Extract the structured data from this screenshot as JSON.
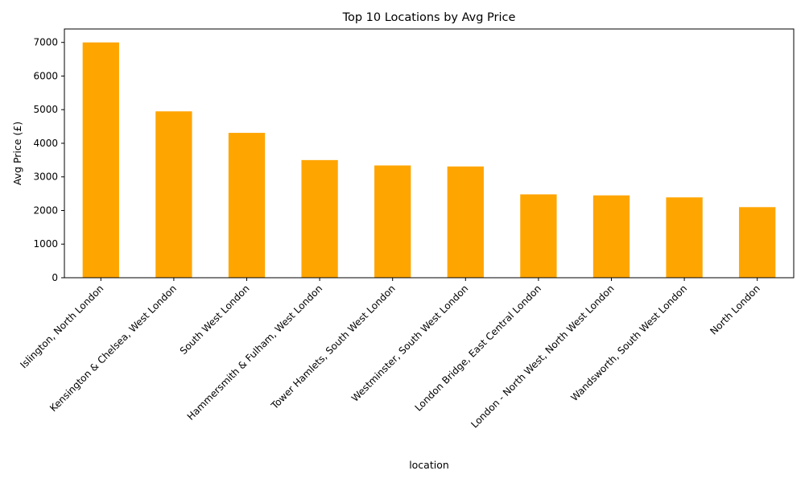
{
  "chart_data": {
    "type": "bar",
    "title": "Top 10 Locations by Avg Price",
    "xlabel": "location",
    "ylabel": "Avg Price (£)",
    "ylim": [
      0,
      7400
    ],
    "yticks": [
      0,
      1000,
      2000,
      3000,
      4000,
      5000,
      6000,
      7000
    ],
    "grid": false,
    "bar_color": "#FFA500",
    "categories": [
      "Islington, North London",
      "Kensington & Chelsea, West London",
      "South West London",
      "Hammersmith & Fulham, West London",
      "Tower Hamlets, South West London",
      "Westminster, South West London",
      "London Bridge, East Central London",
      "London - North West, North West London",
      "Wandsworth, South West London",
      "North London"
    ],
    "values": [
      7000,
      4950,
      4310,
      3500,
      3340,
      3310,
      2480,
      2450,
      2390,
      2100
    ]
  }
}
